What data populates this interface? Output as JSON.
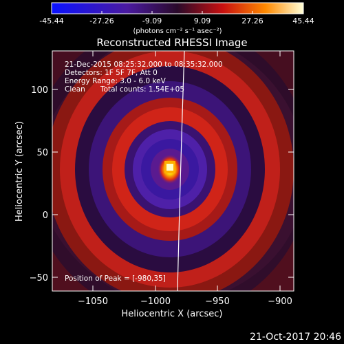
{
  "colorbar": {
    "tick_labels": [
      "-45.44",
      "-27.26",
      "-9.09",
      "9.09",
      "27.26",
      "45.44"
    ],
    "unit_label": "(photons cm⁻² s⁻¹ asec⁻²)",
    "range": [
      -45.44,
      45.44
    ]
  },
  "plot": {
    "title": "Reconstructed RHESSI Image",
    "xlabel": "Heliocentric X (arcsec)",
    "ylabel": "Heliocentric Y (arcsec)",
    "x_ticks": [
      "−1050",
      "−1000",
      "−950",
      "−900"
    ],
    "y_ticks": [
      "−50",
      "0",
      "50",
      "100"
    ],
    "xlim": [
      -1075,
      -880
    ],
    "ylim": [
      -60,
      127
    ]
  },
  "info": {
    "time_range": "21-Dec-2015 08:25:32.000 to 08:35:32.000",
    "detectors": "Detectors: 1F 5F 7F, Att 0",
    "energy_range": "Energy Range: 3.0 - 6.0 keV",
    "algorithm": "Clean",
    "total_counts": "Total counts: 1.54E+05",
    "peak_position": "Position of Peak = [-980,35]"
  },
  "footer": {
    "timestamp": "21-Oct-2017 20:46"
  },
  "colors": {
    "background": "#000000",
    "text": "#ffffff",
    "limb": "#ffffff"
  }
}
